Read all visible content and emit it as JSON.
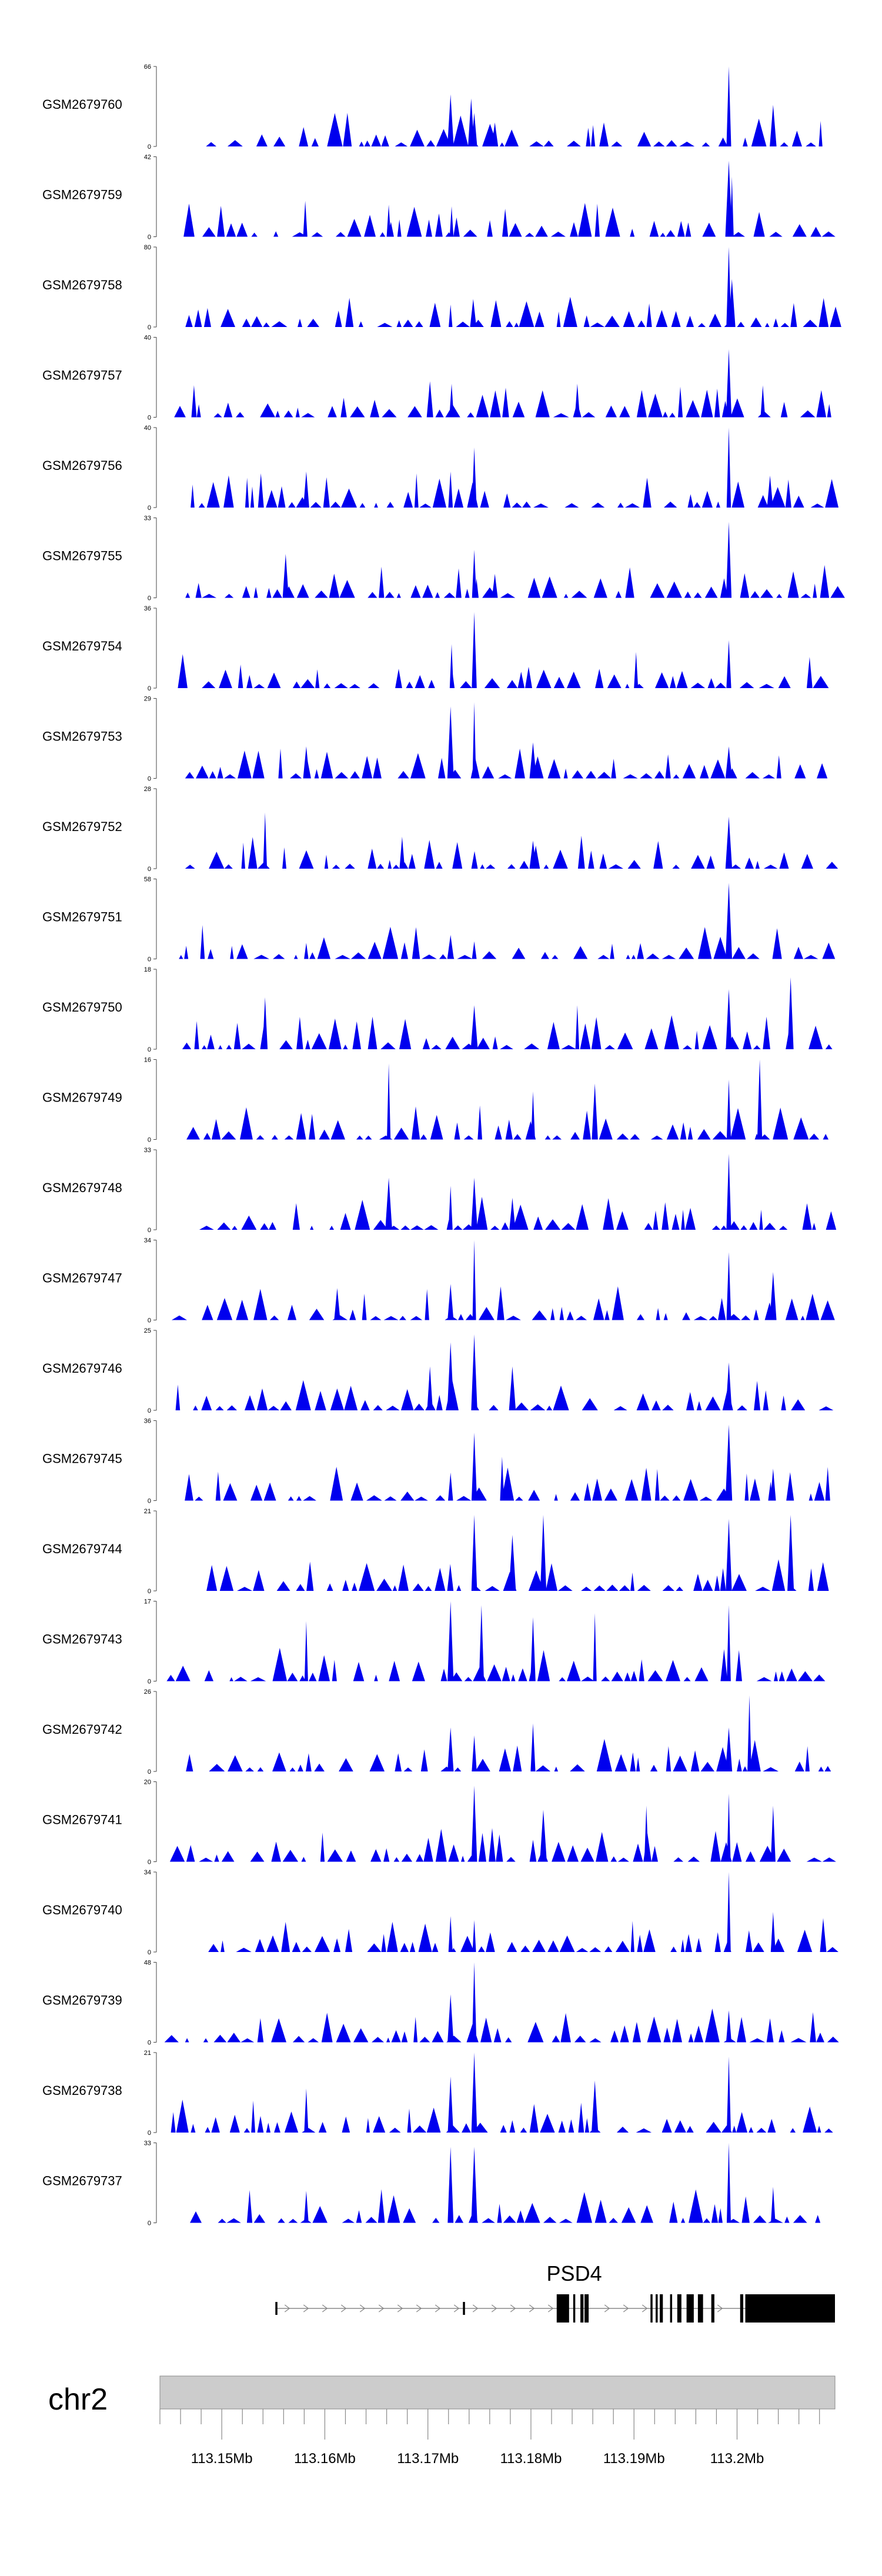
{
  "chart_data": {
    "type": "area",
    "title": "",
    "xlabel": "",
    "ylabel": "",
    "region": {
      "chromosome": "chr2",
      "start": 113.144,
      "end": 113.2095,
      "unit": "Mb"
    },
    "colors": {
      "signal": "#0000ee",
      "ideogram": "#cccccc",
      "ideogram_border": "#888888",
      "gene": "#000000",
      "intron": "#888888"
    },
    "tracks": [
      {
        "name": "GSM2679760",
        "ymax": 66,
        "seed": 60,
        "peaks": [
          {
            "x": 113.1722,
            "v": 0.65
          },
          {
            "x": 113.1742,
            "v": 0.6
          },
          {
            "x": 113.1745,
            "v": 0.42
          },
          {
            "x": 113.1992,
            "v": 1.0
          },
          {
            "x": 113.2035,
            "v": 0.52
          },
          {
            "x": 113.1765,
            "v": 0.3
          }
        ]
      },
      {
        "name": "GSM2679759",
        "ymax": 42,
        "seed": 59,
        "peaks": [
          {
            "x": 113.1581,
            "v": 0.45
          },
          {
            "x": 113.1662,
            "v": 0.4
          },
          {
            "x": 113.1723,
            "v": 0.38
          },
          {
            "x": 113.1992,
            "v": 0.95
          },
          {
            "x": 113.1995,
            "v": 0.75
          },
          {
            "x": 113.1775,
            "v": 0.35
          }
        ]
      },
      {
        "name": "GSM2679758",
        "ymax": 80,
        "seed": 58,
        "peaks": [
          {
            "x": 113.1722,
            "v": 0.28
          },
          {
            "x": 113.1744,
            "v": 0.35
          },
          {
            "x": 113.1992,
            "v": 1.0
          },
          {
            "x": 113.1995,
            "v": 0.6
          },
          {
            "x": 113.2055,
            "v": 0.3
          }
        ]
      },
      {
        "name": "GSM2679757",
        "ymax": 40,
        "seed": 57,
        "peaks": [
          {
            "x": 113.1702,
            "v": 0.45
          },
          {
            "x": 113.1723,
            "v": 0.42
          },
          {
            "x": 113.1845,
            "v": 0.42
          },
          {
            "x": 113.1992,
            "v": 0.85
          },
          {
            "x": 113.2025,
            "v": 0.4
          }
        ]
      },
      {
        "name": "GSM2679756",
        "ymax": 40,
        "seed": 56,
        "peaks": [
          {
            "x": 113.1582,
            "v": 0.45
          },
          {
            "x": 113.1722,
            "v": 0.45
          },
          {
            "x": 113.1745,
            "v": 0.75
          },
          {
            "x": 113.1992,
            "v": 1.0
          },
          {
            "x": 113.2032,
            "v": 0.4
          }
        ]
      },
      {
        "name": "GSM2679755",
        "ymax": 33,
        "seed": 55,
        "peaks": [
          {
            "x": 113.1562,
            "v": 0.55
          },
          {
            "x": 113.1745,
            "v": 0.6
          },
          {
            "x": 113.1992,
            "v": 0.95
          },
          {
            "x": 113.1765,
            "v": 0.3
          }
        ]
      },
      {
        "name": "GSM2679754",
        "ymax": 36,
        "seed": 54,
        "peaks": [
          {
            "x": 113.1723,
            "v": 0.55
          },
          {
            "x": 113.1745,
            "v": 0.95
          },
          {
            "x": 113.1992,
            "v": 0.6
          },
          {
            "x": 113.1902,
            "v": 0.45
          }
        ]
      },
      {
        "name": "GSM2679753",
        "ymax": 29,
        "seed": 53,
        "peaks": [
          {
            "x": 113.1722,
            "v": 0.9
          },
          {
            "x": 113.1745,
            "v": 0.95
          },
          {
            "x": 113.1582,
            "v": 0.4
          },
          {
            "x": 113.1992,
            "v": 0.4
          },
          {
            "x": 113.1802,
            "v": 0.45
          }
        ]
      },
      {
        "name": "GSM2679752",
        "ymax": 28,
        "seed": 52,
        "peaks": [
          {
            "x": 113.1542,
            "v": 0.7
          },
          {
            "x": 113.1992,
            "v": 0.65
          },
          {
            "x": 113.1675,
            "v": 0.4
          },
          {
            "x": 113.1802,
            "v": 0.35
          }
        ]
      },
      {
        "name": "GSM2679751",
        "ymax": 58,
        "seed": 51,
        "peaks": [
          {
            "x": 113.1992,
            "v": 0.95
          },
          {
            "x": 113.1722,
            "v": 0.3
          },
          {
            "x": 113.1582,
            "v": 0.2
          },
          {
            "x": 113.1745,
            "v": 0.22
          }
        ]
      },
      {
        "name": "GSM2679750",
        "ymax": 18,
        "seed": 50,
        "peaks": [
          {
            "x": 113.2052,
            "v": 0.9
          },
          {
            "x": 113.1992,
            "v": 0.75
          },
          {
            "x": 113.1542,
            "v": 0.65
          },
          {
            "x": 113.1745,
            "v": 0.55
          },
          {
            "x": 113.1845,
            "v": 0.55
          }
        ]
      },
      {
        "name": "GSM2679749",
        "ymax": 16,
        "seed": 49,
        "peaks": [
          {
            "x": 113.1662,
            "v": 0.95
          },
          {
            "x": 113.2022,
            "v": 1.0
          },
          {
            "x": 113.1992,
            "v": 0.75
          },
          {
            "x": 113.1862,
            "v": 0.7
          },
          {
            "x": 113.1802,
            "v": 0.6
          }
        ]
      },
      {
        "name": "GSM2679748",
        "ymax": 33,
        "seed": 48,
        "peaks": [
          {
            "x": 113.1662,
            "v": 0.65
          },
          {
            "x": 113.1722,
            "v": 0.55
          },
          {
            "x": 113.1745,
            "v": 0.65
          },
          {
            "x": 113.1992,
            "v": 0.95
          },
          {
            "x": 113.1782,
            "v": 0.4
          }
        ]
      },
      {
        "name": "GSM2679747",
        "ymax": 34,
        "seed": 47,
        "peaks": [
          {
            "x": 113.1745,
            "v": 1.0
          },
          {
            "x": 113.1722,
            "v": 0.45
          },
          {
            "x": 113.1992,
            "v": 0.85
          },
          {
            "x": 113.2035,
            "v": 0.6
          },
          {
            "x": 113.1612,
            "v": 0.4
          }
        ]
      },
      {
        "name": "GSM2679746",
        "ymax": 25,
        "seed": 46,
        "peaks": [
          {
            "x": 113.1722,
            "v": 0.85
          },
          {
            "x": 113.1745,
            "v": 0.95
          },
          {
            "x": 113.1702,
            "v": 0.55
          },
          {
            "x": 113.1782,
            "v": 0.55
          },
          {
            "x": 113.1992,
            "v": 0.6
          }
        ]
      },
      {
        "name": "GSM2679745",
        "ymax": 36,
        "seed": 45,
        "peaks": [
          {
            "x": 113.1745,
            "v": 0.85
          },
          {
            "x": 113.1992,
            "v": 0.95
          },
          {
            "x": 113.1772,
            "v": 0.55
          },
          {
            "x": 113.2035,
            "v": 0.4
          },
          {
            "x": 113.1722,
            "v": 0.35
          }
        ]
      },
      {
        "name": "GSM2679744",
        "ymax": 21,
        "seed": 44,
        "peaks": [
          {
            "x": 113.1745,
            "v": 0.95
          },
          {
            "x": 113.1812,
            "v": 0.95
          },
          {
            "x": 113.2052,
            "v": 0.95
          },
          {
            "x": 113.1992,
            "v": 0.9
          },
          {
            "x": 113.1782,
            "v": 0.7
          }
        ]
      },
      {
        "name": "GSM2679743",
        "ymax": 17,
        "seed": 43,
        "peaks": [
          {
            "x": 113.1722,
            "v": 1.0
          },
          {
            "x": 113.1752,
            "v": 0.95
          },
          {
            "x": 113.1802,
            "v": 0.8
          },
          {
            "x": 113.1862,
            "v": 0.85
          },
          {
            "x": 113.1992,
            "v": 0.95
          },
          {
            "x": 113.1582,
            "v": 0.75
          }
        ]
      },
      {
        "name": "GSM2679742",
        "ymax": 26,
        "seed": 42,
        "peaks": [
          {
            "x": 113.2012,
            "v": 0.95
          },
          {
            "x": 113.1722,
            "v": 0.55
          },
          {
            "x": 113.1802,
            "v": 0.6
          },
          {
            "x": 113.1992,
            "v": 0.55
          },
          {
            "x": 113.1745,
            "v": 0.45
          }
        ]
      },
      {
        "name": "GSM2679741",
        "ymax": 20,
        "seed": 41,
        "peaks": [
          {
            "x": 113.1745,
            "v": 0.95
          },
          {
            "x": 113.1912,
            "v": 0.7
          },
          {
            "x": 113.1992,
            "v": 0.85
          },
          {
            "x": 113.2035,
            "v": 0.7
          },
          {
            "x": 113.1812,
            "v": 0.65
          }
        ]
      },
      {
        "name": "GSM2679740",
        "ymax": 34,
        "seed": 40,
        "peaks": [
          {
            "x": 113.1992,
            "v": 1.0
          },
          {
            "x": 113.1722,
            "v": 0.45
          },
          {
            "x": 113.1745,
            "v": 0.4
          },
          {
            "x": 113.2035,
            "v": 0.5
          }
        ]
      },
      {
        "name": "GSM2679739",
        "ymax": 48,
        "seed": 39,
        "peaks": [
          {
            "x": 113.1745,
            "v": 1.0
          },
          {
            "x": 113.1722,
            "v": 0.6
          },
          {
            "x": 113.1992,
            "v": 0.4
          },
          {
            "x": 113.2032,
            "v": 0.3
          }
        ]
      },
      {
        "name": "GSM2679738",
        "ymax": 21,
        "seed": 38,
        "peaks": [
          {
            "x": 113.1745,
            "v": 1.0
          },
          {
            "x": 113.1992,
            "v": 0.95
          },
          {
            "x": 113.1722,
            "v": 0.7
          },
          {
            "x": 113.1862,
            "v": 0.65
          },
          {
            "x": 113.1582,
            "v": 0.55
          }
        ]
      },
      {
        "name": "GSM2679737",
        "ymax": 33,
        "seed": 37,
        "peaks": [
          {
            "x": 113.1722,
            "v": 0.95
          },
          {
            "x": 113.1745,
            "v": 0.95
          },
          {
            "x": 113.1992,
            "v": 1.0
          },
          {
            "x": 113.1582,
            "v": 0.4
          },
          {
            "x": 113.2035,
            "v": 0.45
          }
        ]
      }
    ],
    "gene": {
      "name": "PSD4",
      "tx_start": 113.1552,
      "tx_end": 113.2095,
      "exons": [
        [
          113.1552,
          113.1554
        ],
        [
          113.1734,
          113.1736
        ],
        [
          113.1825,
          113.1837
        ],
        [
          113.1841,
          113.1843
        ],
        [
          113.1848,
          113.1851
        ],
        [
          113.1852,
          113.1856
        ],
        [
          113.1916,
          113.1918
        ],
        [
          113.1921,
          113.1923
        ],
        [
          113.1925,
          113.1928
        ],
        [
          113.1935,
          113.1937
        ],
        [
          113.1942,
          113.1946
        ],
        [
          113.1951,
          113.1958
        ],
        [
          113.1962,
          113.1967
        ],
        [
          113.1975,
          113.1978
        ],
        [
          113.2003,
          113.2006
        ],
        [
          113.2008,
          113.2095
        ]
      ],
      "thick_from": 113.1825
    },
    "x_axis": {
      "ticks": [
        113.15,
        113.16,
        113.17,
        113.18,
        113.19,
        113.2
      ],
      "tick_labels": [
        "113.15Mb",
        "113.16Mb",
        "113.17Mb",
        "113.18Mb",
        "113.19Mb",
        "113.2Mb"
      ],
      "minor_step": 0.002
    }
  }
}
